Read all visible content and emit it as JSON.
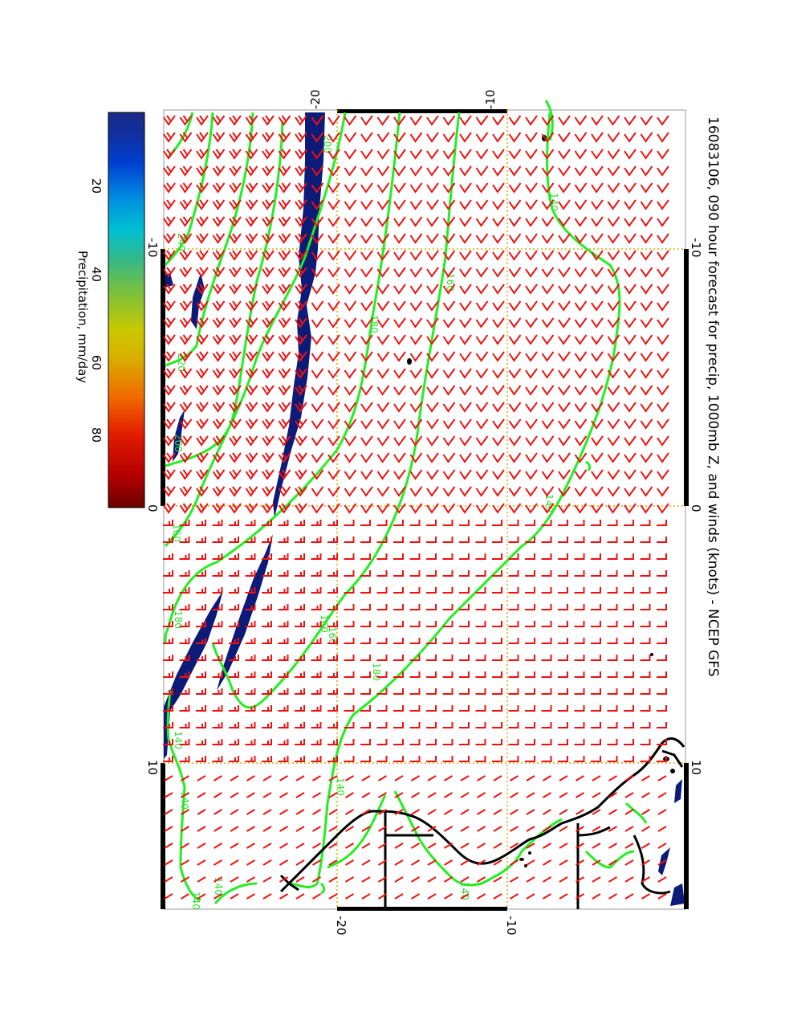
{
  "title": "16083106, 090 hour forecast for precip, 1000mb Z, and winds (knots) - NCEP GFS",
  "axes": {
    "longitude_ticks": [
      "-10",
      "0",
      "10"
    ],
    "latitude_ticks": [
      "-20",
      "-10"
    ]
  },
  "colorbar": {
    "label": "Precipitation, mm/day",
    "ticks": [
      "20",
      "40",
      "60",
      "80"
    ],
    "colors": [
      "#6b0000",
      "#b30000",
      "#e01a00",
      "#f06a00",
      "#d9b000",
      "#c8c800",
      "#77c040",
      "#33b88a",
      "#00c0d0",
      "#0090e0",
      "#0040d0",
      "#1030a0",
      "#1c2a88"
    ]
  },
  "contour_labels": [
    "140",
    "160",
    "180",
    "200",
    "220",
    "240",
    "140",
    "160",
    "180",
    "200",
    "160",
    "140",
    "140",
    "140",
    "180",
    "160",
    "140",
    "140",
    "140"
  ],
  "colors": {
    "precip_fill": "#0c1a78",
    "contour": "#22ee22",
    "wind": "#ee1111",
    "coast": "#000000",
    "grid": "#e0a800"
  }
}
